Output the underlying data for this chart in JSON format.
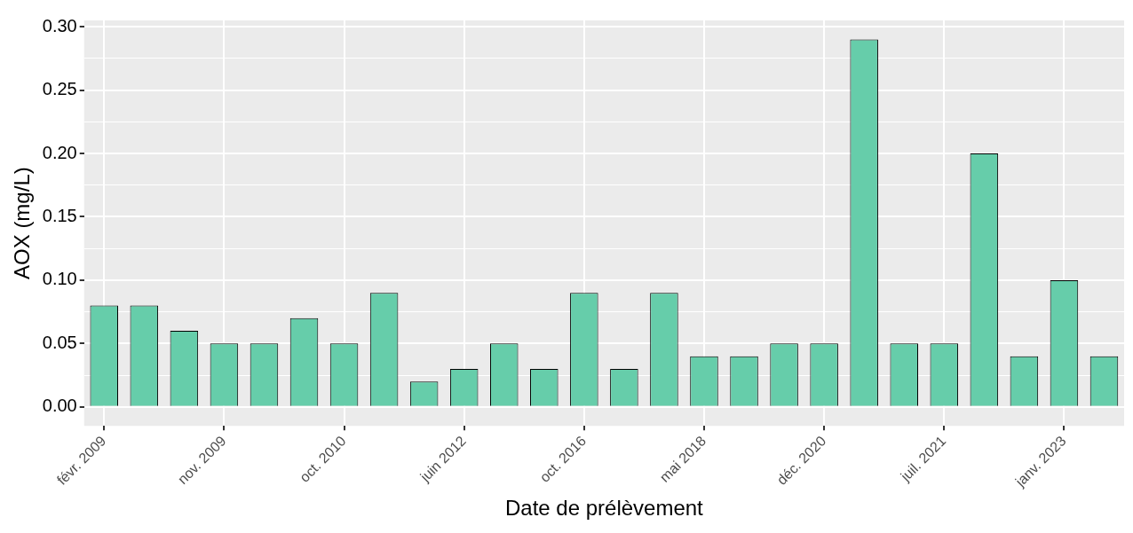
{
  "chart_data": {
    "type": "bar",
    "xlabel": "Date de prélèvement",
    "ylabel": "AOX (mg/L)",
    "categories": [
      "févr. 2009",
      null,
      null,
      "nov. 2009",
      null,
      null,
      "oct. 2010",
      null,
      null,
      "juin 2012",
      null,
      null,
      "oct. 2016",
      null,
      null,
      "mai 2018",
      null,
      null,
      "déc. 2020",
      null,
      null,
      "juil. 2021",
      null,
      null,
      "janv. 2023",
      null
    ],
    "values": [
      0.08,
      0.08,
      0.06,
      0.05,
      0.05,
      0.07,
      0.05,
      0.09,
      0.02,
      0.03,
      0.05,
      0.03,
      0.09,
      0.03,
      0.09,
      0.04,
      0.04,
      0.05,
      0.05,
      0.29,
      0.05,
      0.05,
      0.2,
      0.04,
      0.1,
      0.04
    ],
    "color": "#66cdaa",
    "ylim": [
      -0.015,
      0.305
    ],
    "yticks": [
      {
        "value": 0,
        "label": "0.00"
      },
      {
        "value": 0.05,
        "label": "0.05"
      },
      {
        "value": 0.1,
        "label": "0.10"
      },
      {
        "value": 0.15,
        "label": "0.15"
      },
      {
        "value": 0.2,
        "label": "0.20"
      },
      {
        "value": 0.25,
        "label": "0.25"
      },
      {
        "value": 0.3,
        "label": "0.30"
      }
    ],
    "grid": true
  }
}
